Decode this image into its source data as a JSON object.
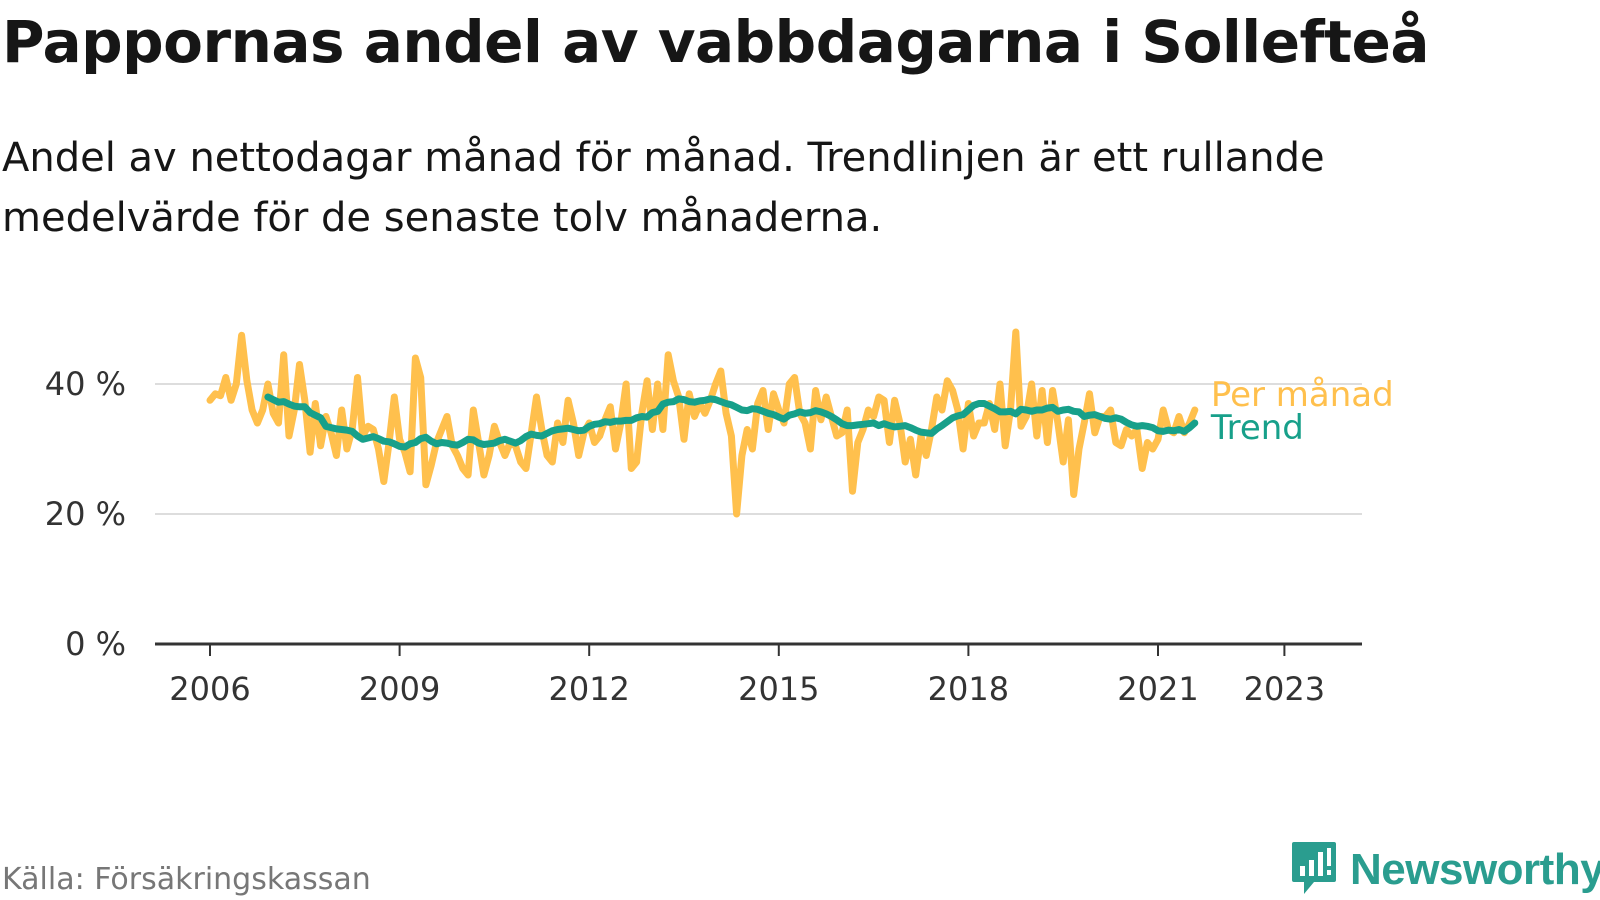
{
  "title": "Pappornas andel av vabbdagarna i Sollefteå",
  "subtitle": "Andel av nettodagar månad för månad. Trendlinjen är ett rullande medelvärde för de senaste tolv månaderna.",
  "source": "Källa: Försäkringskassan",
  "brand": {
    "name": "Newsworthy",
    "icon": "newsworthy-logo-icon",
    "color": "#2a9d8f"
  },
  "chart_data": {
    "type": "line",
    "title": "Pappornas andel av vabbdagarna i Sollefteå",
    "xlabel": "",
    "ylabel": "",
    "ylim": [
      0,
      50
    ],
    "xlim": [
      2005.2,
      2024.2
    ],
    "y_ticks": [
      0,
      20,
      40
    ],
    "y_tick_labels": [
      "0 %",
      "20 %",
      "40 %"
    ],
    "x_ticks": [
      2006,
      2009,
      2012,
      2015,
      2018,
      2021,
      2023
    ],
    "x_tick_labels": [
      "2006",
      "2009",
      "2012",
      "2015",
      "2018",
      "2021",
      "2023"
    ],
    "grid": true,
    "legend": "inline-end",
    "colors": {
      "per_manad": "#ffc04d",
      "trend": "#17a08a",
      "grid": "#dddddd",
      "axis": "#333333"
    },
    "series": [
      {
        "name": "Per månad",
        "x_start": 2006.0,
        "step": 0.08333,
        "values": [
          37.5,
          38.5,
          38.2,
          41,
          37.5,
          40,
          47.5,
          40.5,
          36,
          34,
          36,
          40,
          35.5,
          34,
          44.5,
          32,
          36,
          43,
          37.5,
          29.5,
          37,
          30.5,
          35,
          32.5,
          29,
          36,
          30,
          33,
          41,
          32,
          33.5,
          33,
          30,
          25,
          31,
          38,
          31.5,
          29.5,
          26.5,
          44,
          41,
          24.5,
          27.5,
          31,
          33,
          35,
          30.5,
          29,
          27,
          26,
          36,
          31,
          26,
          29,
          33.5,
          31,
          29,
          31,
          30.5,
          28,
          27,
          32.5,
          38,
          33,
          29,
          28,
          34,
          31,
          37.5,
          34,
          29,
          32.5,
          34,
          31,
          32,
          34.5,
          36.5,
          30,
          34,
          40,
          27,
          28,
          35.5,
          40.5,
          33,
          40,
          33,
          44.5,
          40.5,
          38,
          31.5,
          38.5,
          35,
          37,
          35.5,
          37.5,
          40,
          42,
          35.5,
          32,
          20,
          29,
          33,
          30,
          37,
          39,
          33,
          38.5,
          36,
          34,
          40,
          41,
          35.5,
          34,
          30,
          39,
          34.5,
          38,
          35,
          32,
          32.5,
          36,
          23.5,
          31,
          33,
          36,
          35,
          38,
          37.5,
          31,
          37.5,
          34,
          28,
          31.5,
          26,
          32,
          29,
          33,
          38,
          36,
          40.5,
          39,
          36,
          30,
          37,
          32,
          34,
          34,
          37,
          33,
          40,
          30.5,
          36,
          48,
          33.5,
          35,
          40,
          32,
          39,
          31,
          39,
          34,
          28,
          34.5,
          23,
          30,
          34,
          38.5,
          32.5,
          35,
          35,
          36,
          31,
          30.5,
          33,
          32,
          33,
          27,
          31,
          30,
          31.5,
          36,
          33,
          32.5,
          35,
          32.5,
          34,
          36
        ]
      },
      {
        "name": "Trend",
        "x_start": 2006.9167,
        "step": 0.08333,
        "values": [
          38,
          37.6,
          37.2,
          37.3,
          36.9,
          36.6,
          36.5,
          36.5,
          35.6,
          35.2,
          34.8,
          33.5,
          33.3,
          33.1,
          33,
          32.9,
          32.7,
          32,
          31.5,
          31.7,
          31.9,
          31.6,
          31.2,
          31.1,
          30.8,
          30.4,
          30.3,
          30.8,
          31,
          31.6,
          31.8,
          31.2,
          30.8,
          31,
          30.9,
          30.7,
          30.6,
          31,
          31.5,
          31.4,
          30.9,
          30.7,
          30.8,
          30.9,
          31.3,
          31.5,
          31.2,
          30.9,
          31.3,
          31.9,
          32.3,
          32.1,
          32,
          32.4,
          32.8,
          33,
          33.1,
          33.2,
          33,
          32.8,
          32.9,
          33.5,
          33.8,
          33.9,
          34.2,
          34.1,
          34.3,
          34.3,
          34.4,
          34.4,
          34.8,
          35,
          34.9,
          35.6,
          35.8,
          36.9,
          37.2,
          37.3,
          37.7,
          37.6,
          37.3,
          37.2,
          37.4,
          37.5,
          37.7,
          37.6,
          37.3,
          37,
          36.8,
          36.4,
          36,
          35.9,
          36.2,
          36.1,
          35.8,
          35.5,
          35.3,
          34.9,
          34.6,
          35.2,
          35.4,
          35.7,
          35.5,
          35.6,
          35.9,
          35.7,
          35.4,
          35,
          34.5,
          33.9,
          33.6,
          33.6,
          33.7,
          33.8,
          33.9,
          34,
          33.6,
          33.9,
          33.6,
          33.4,
          33.5,
          33.6,
          33.3,
          32.9,
          32.6,
          32.5,
          32.4,
          33.1,
          33.6,
          34.2,
          34.8,
          35.1,
          35.3,
          36,
          36.7,
          37,
          37,
          36.6,
          36.2,
          35.7,
          35.7,
          35.8,
          35.4,
          36.1,
          36,
          35.8,
          36,
          36,
          36.3,
          36.4,
          35.8,
          36,
          36.1,
          35.8,
          35.7,
          35,
          35.2,
          35.3,
          35,
          34.7,
          34.6,
          34.8,
          34.6,
          34.1,
          33.7,
          33.5,
          33.6,
          33.5,
          33.3,
          32.8,
          32.7,
          32.9,
          32.8,
          33,
          32.7,
          33.3,
          34
        ]
      }
    ]
  }
}
